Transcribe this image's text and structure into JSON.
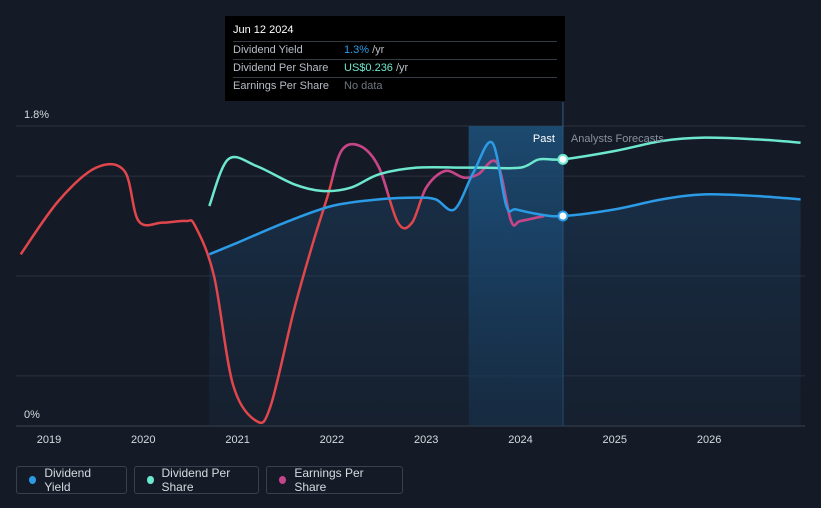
{
  "tooltip": {
    "date": "Jun 12 2024",
    "rows": [
      {
        "label": "Dividend Yield",
        "value": "1.3%",
        "unit": "/yr"
      },
      {
        "label": "Dividend Per Share",
        "value": "US$0.236",
        "unit": "/yr"
      },
      {
        "label": "Earnings Per Share",
        "value": "No data",
        "unit": ""
      }
    ]
  },
  "legend": [
    {
      "label": "Dividend Yield",
      "color": "#2b9be6"
    },
    {
      "label": "Dividend Per Share",
      "color": "#6de8cf"
    },
    {
      "label": "Earnings Per Share",
      "color": "#c4458a"
    }
  ],
  "chart_data": {
    "type": "line",
    "y_tick_labels": [
      "1.8%",
      "0%"
    ],
    "ylim": [
      0,
      1.8
    ],
    "x_tick_labels": [
      "2019",
      "2020",
      "2021",
      "2022",
      "2023",
      "2024",
      "2025",
      "2026"
    ],
    "xlim": [
      2018.7,
      2026.97
    ],
    "grid": true,
    "past_label": "Past",
    "forecast_label": "Analysts Forecasts",
    "divider_x": 2024.45,
    "highlight_range": [
      2023.45,
      2024.45
    ],
    "colors": {
      "dividend_yield": "#2b9be6",
      "dividend_per_share": "#6de8cf",
      "earnings_per_share": "#c4458a",
      "earnings_negative": "#e0464c"
    },
    "series": [
      {
        "name": "Dividend Yield",
        "key": "dividend_yield",
        "x": [
          2020.7,
          2021.0,
          2021.5,
          2022.0,
          2022.5,
          2022.9,
          2023.1,
          2023.3,
          2023.5,
          2023.7,
          2023.85,
          2023.95,
          2024.2,
          2024.45,
          2025.0,
          2025.5,
          2025.95,
          2026.5,
          2026.97
        ],
        "y": [
          1.03,
          1.1,
          1.22,
          1.32,
          1.36,
          1.37,
          1.36,
          1.3,
          1.52,
          1.7,
          1.32,
          1.3,
          1.27,
          1.26,
          1.3,
          1.36,
          1.39,
          1.38,
          1.36
        ]
      },
      {
        "name": "Dividend Per Share",
        "key": "dividend_per_share",
        "x": [
          2020.7,
          2020.9,
          2021.2,
          2021.6,
          2021.9,
          2022.2,
          2022.5,
          2022.9,
          2023.4,
          2023.6,
          2024.0,
          2024.2,
          2024.45,
          2025.0,
          2025.5,
          2025.95,
          2026.5,
          2026.97
        ],
        "y": [
          1.32,
          1.6,
          1.56,
          1.45,
          1.41,
          1.43,
          1.51,
          1.55,
          1.55,
          1.55,
          1.55,
          1.6,
          1.6,
          1.65,
          1.71,
          1.73,
          1.72,
          1.7
        ]
      },
      {
        "name": "Earnings Per Share",
        "key": "earnings_per_share",
        "x": [
          2018.7,
          2019.1,
          2019.5,
          2019.8,
          2019.95,
          2020.2,
          2020.45,
          2020.55,
          2020.75,
          2020.95,
          2021.2,
          2021.35,
          2021.6,
          2021.8,
          2021.95,
          2022.1,
          2022.3,
          2022.5,
          2022.7,
          2022.85,
          2023.0,
          2023.2,
          2023.4,
          2023.55,
          2023.75,
          2023.9,
          2024.0,
          2024.25
        ],
        "y": [
          1.03,
          1.35,
          1.55,
          1.53,
          1.23,
          1.22,
          1.23,
          1.2,
          0.9,
          0.25,
          0.03,
          0.12,
          0.7,
          1.1,
          1.37,
          1.65,
          1.68,
          1.55,
          1.22,
          1.22,
          1.43,
          1.53,
          1.49,
          1.51,
          1.58,
          1.23,
          1.23,
          1.26
        ]
      }
    ]
  }
}
